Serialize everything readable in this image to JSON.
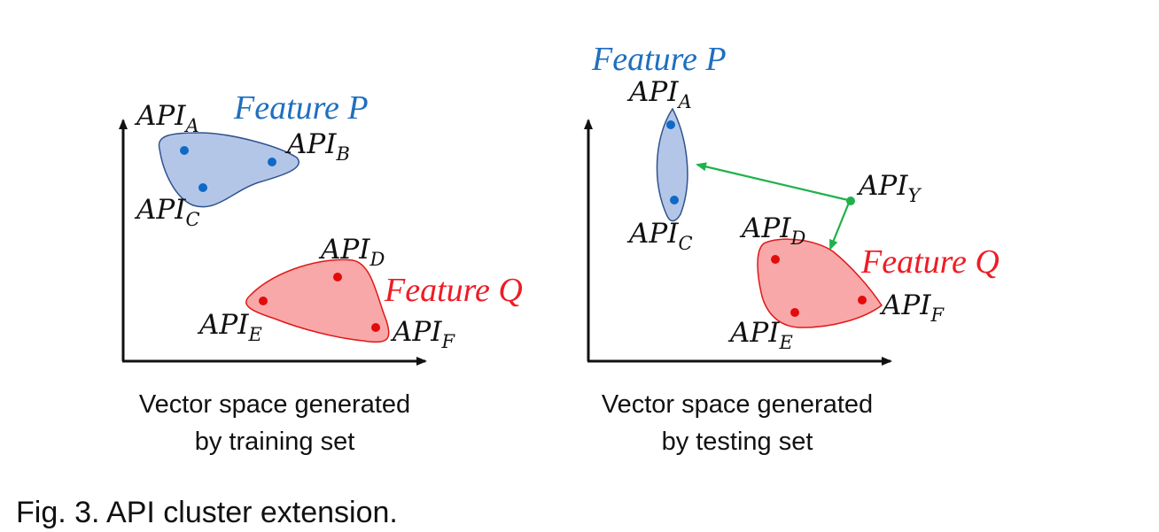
{
  "colors": {
    "feature_p_text": "#1f6fbf",
    "feature_q_text": "#ee1c25",
    "blue_fill": "#b4c6e7",
    "blue_stroke": "#2f528f",
    "blue_dot": "#0e6ac7",
    "red_fill": "#f8a8a8",
    "red_stroke": "#e21818",
    "red_dot": "#e40b0b",
    "green": "#1fb14c",
    "axis": "#111111"
  },
  "left_panel": {
    "feature_p": "Feature P",
    "feature_q": "Feature Q",
    "labels": {
      "a": {
        "main": "API",
        "sub": "A"
      },
      "b": {
        "main": "API",
        "sub": "B"
      },
      "c": {
        "main": "API",
        "sub": "C"
      },
      "d": {
        "main": "API",
        "sub": "D"
      },
      "e": {
        "main": "API",
        "sub": "E"
      },
      "f": {
        "main": "API",
        "sub": "F"
      }
    },
    "caption_line1": "Vector space generated",
    "caption_line2": "by training set"
  },
  "right_panel": {
    "feature_p": "Feature P",
    "feature_q": "Feature Q",
    "labels": {
      "a": {
        "main": "API",
        "sub": "A"
      },
      "c": {
        "main": "API",
        "sub": "C"
      },
      "d": {
        "main": "API",
        "sub": "D"
      },
      "e": {
        "main": "API",
        "sub": "E"
      },
      "f": {
        "main": "API",
        "sub": "F"
      },
      "y": {
        "main": "API",
        "sub": "Y"
      }
    },
    "caption_line1": "Vector space generated",
    "caption_line2": "by testing set"
  },
  "figure_caption": "Fig. 3. API cluster extension."
}
